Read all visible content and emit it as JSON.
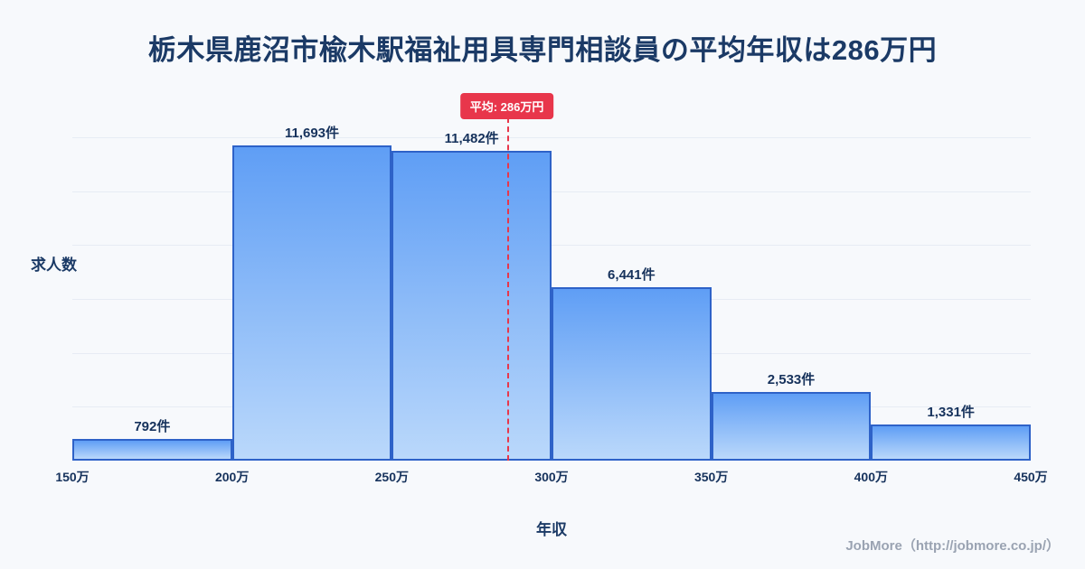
{
  "title": "栃木県鹿沼市楡木駅福祉用具専門相談員の平均年収は286万円",
  "footer": "JobMore（http://jobmore.co.jp/）",
  "colors": {
    "background": "#f7f9fc",
    "title_text": "#1b3a66",
    "bar_gradient_top": "#5f9ef5",
    "bar_gradient_bottom": "#bad8fb",
    "bar_border": "#2e62c8",
    "average_accent": "#e8364b",
    "gridline": "#e7ecf4",
    "footer_text": "#9aa3b2"
  },
  "chart_data": {
    "type": "bar",
    "subtype": "histogram",
    "title": "栃木県鹿沼市楡木駅福祉用具専門相談員の平均年収は286万円",
    "xlabel": "年収",
    "ylabel": "求人数",
    "bin_edges": [
      150,
      200,
      250,
      300,
      350,
      400,
      450
    ],
    "bin_edge_labels": [
      "150万",
      "200万",
      "250万",
      "300万",
      "350万",
      "400万",
      "450万"
    ],
    "values": [
      792,
      11693,
      11482,
      6441,
      2533,
      1331
    ],
    "value_labels": [
      "792件",
      "11,693件",
      "11,482件",
      "6,441件",
      "2,533件",
      "1,331件"
    ],
    "average": 286,
    "average_label": "平均: 286万円",
    "xlim": [
      150,
      450
    ],
    "ylim": [
      0,
      12400
    ],
    "gridline_step": 2000,
    "grid": "horizontal",
    "legend": "none"
  }
}
